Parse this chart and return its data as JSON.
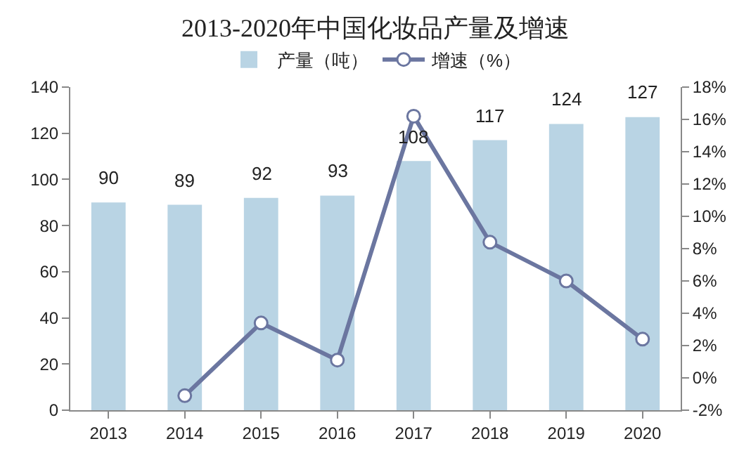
{
  "chart_data": {
    "type": "bar",
    "title": "2013-2020年中国化妆品产量及增速",
    "categories": [
      "2013",
      "2014",
      "2015",
      "2016",
      "2017",
      "2018",
      "2019",
      "2020"
    ],
    "series": [
      {
        "name": "产量（吨）",
        "color": "#b9d4e4",
        "values": [
          90,
          89,
          92,
          93,
          108,
          117,
          124,
          127
        ],
        "value_labels": [
          "90",
          "89",
          "92",
          "93",
          "108",
          "117",
          "124",
          "127"
        ]
      },
      {
        "name": "增速（%）",
        "type": "line",
        "axis": "y2",
        "color": "#6b76a0",
        "marker": "circle",
        "values": [
          null,
          -1.1,
          3.4,
          1.1,
          16.2,
          8.4,
          6.0,
          2.4
        ]
      }
    ],
    "ylim": [
      0,
      140
    ],
    "yticks": [
      0,
      20,
      40,
      60,
      80,
      100,
      120,
      140
    ],
    "y2lim": [
      -2,
      18
    ],
    "y2ticks": [
      {
        "value": -2,
        "label": "-2%"
      },
      {
        "value": 0,
        "label": "0%"
      },
      {
        "value": 2,
        "label": "2%"
      },
      {
        "value": 4,
        "label": "4%"
      },
      {
        "value": 6,
        "label": "6%"
      },
      {
        "value": 8,
        "label": "8%"
      },
      {
        "value": 10,
        "label": "10%"
      },
      {
        "value": 12,
        "label": "12%"
      },
      {
        "value": 14,
        "label": "14%"
      },
      {
        "value": 16,
        "label": "16%"
      },
      {
        "value": 18,
        "label": "18%"
      }
    ],
    "grid": false,
    "legend": "top"
  }
}
